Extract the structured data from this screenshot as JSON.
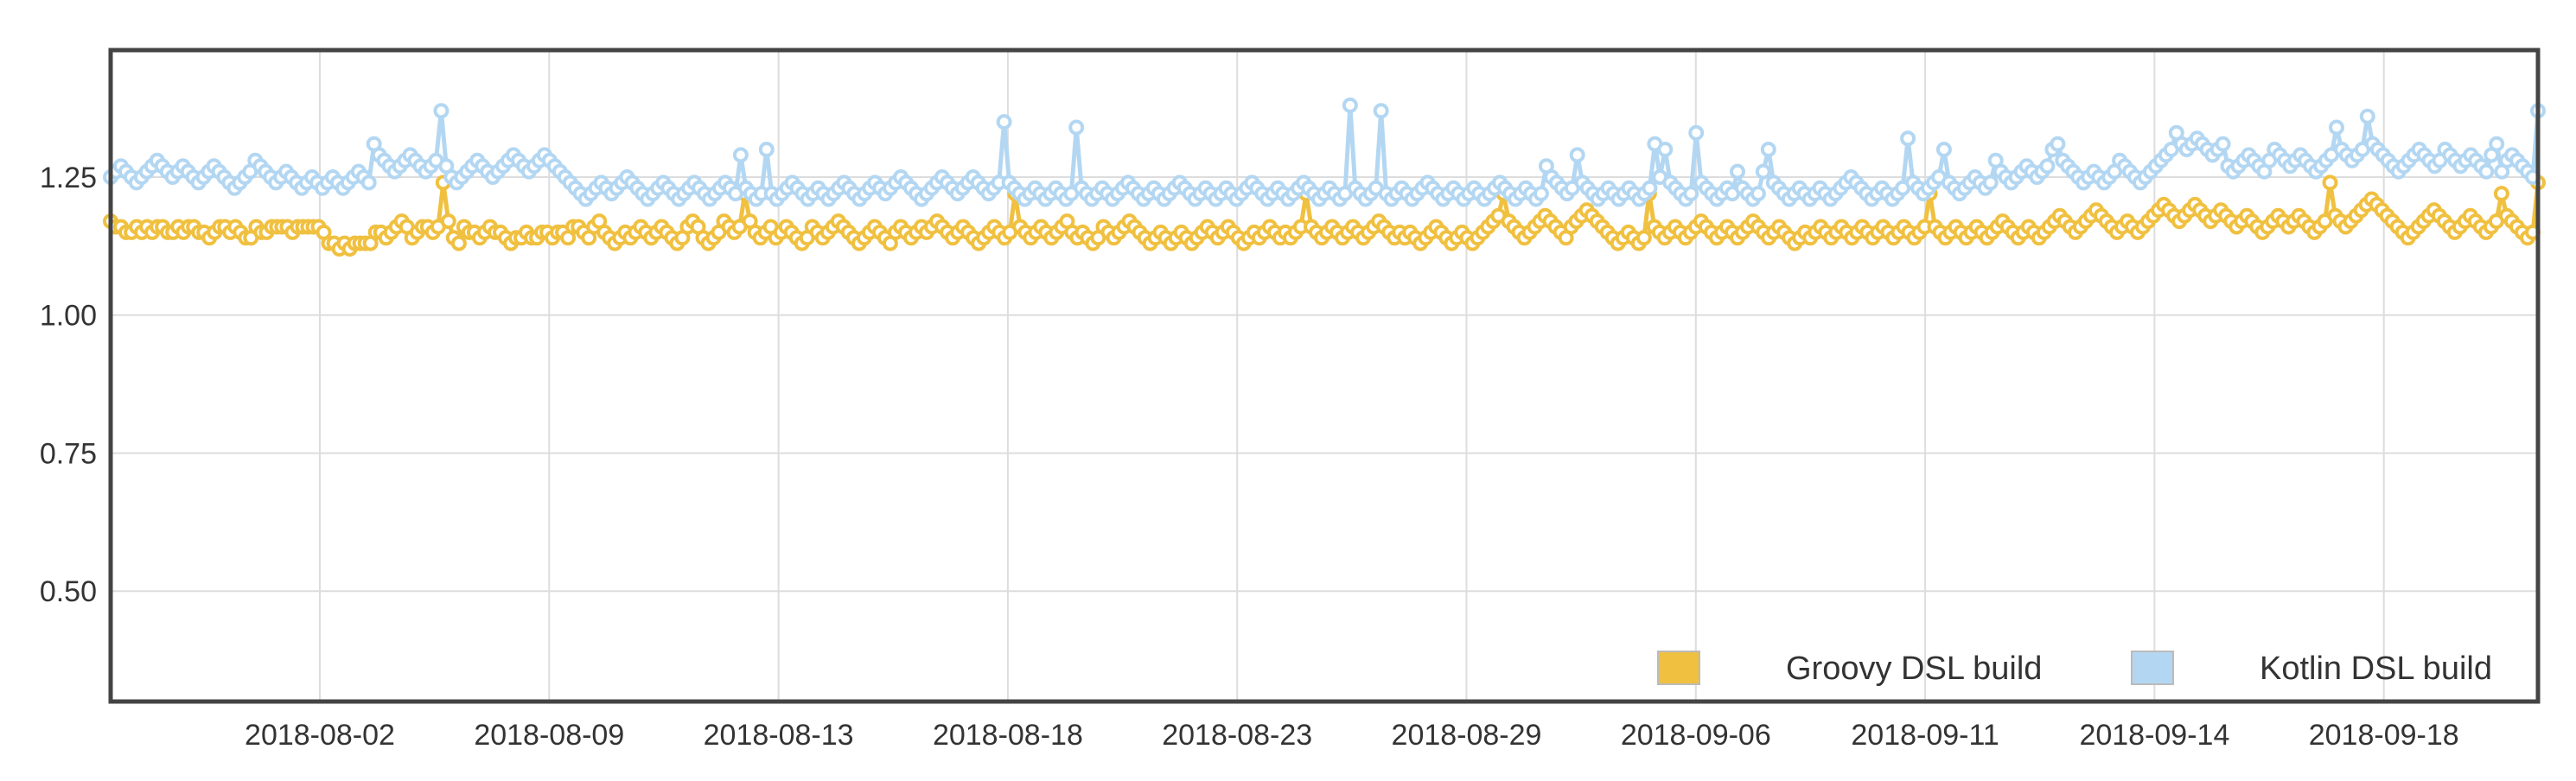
{
  "chart_data": {
    "type": "line",
    "title": "",
    "xlabel": "",
    "ylabel": "",
    "ylim": [
      0.3,
      1.48
    ],
    "y_ticks": [
      "0.50",
      "0.75",
      "1.00",
      "1.25"
    ],
    "x_ticks": [
      "2018-08-02",
      "2018-08-09",
      "2018-08-13",
      "2018-08-18",
      "2018-08-23",
      "2018-08-29",
      "2018-09-06",
      "2018-09-11",
      "2018-09-14",
      "2018-09-18"
    ],
    "grid": true,
    "legend_position": "bottom-right",
    "series": [
      {
        "name": "Groovy DSL build",
        "color": "#f0c040",
        "values": [
          1.17,
          1.16,
          1.16,
          1.15,
          1.15,
          1.16,
          1.15,
          1.16,
          1.15,
          1.16,
          1.16,
          1.15,
          1.15,
          1.16,
          1.15,
          1.16,
          1.16,
          1.15,
          1.15,
          1.14,
          1.15,
          1.16,
          1.16,
          1.15,
          1.16,
          1.15,
          1.14,
          1.14,
          1.16,
          1.15,
          1.15,
          1.16,
          1.16,
          1.16,
          1.16,
          1.15,
          1.16,
          1.16,
          1.16,
          1.16,
          1.16,
          1.15,
          1.13,
          1.13,
          1.12,
          1.13,
          1.12,
          1.13,
          1.13,
          1.13,
          1.13,
          1.15,
          1.15,
          1.14,
          1.15,
          1.16,
          1.17,
          1.16,
          1.14,
          1.15,
          1.16,
          1.16,
          1.15,
          1.16,
          1.24,
          1.17,
          1.14,
          1.13,
          1.16,
          1.15,
          1.15,
          1.14,
          1.15,
          1.16,
          1.15,
          1.15,
          1.14,
          1.13,
          1.14,
          1.14,
          1.15,
          1.14,
          1.14,
          1.15,
          1.15,
          1.14,
          1.15,
          1.15,
          1.14,
          1.16,
          1.16,
          1.15,
          1.14,
          1.16,
          1.17,
          1.15,
          1.14,
          1.13,
          1.14,
          1.15,
          1.14,
          1.15,
          1.16,
          1.15,
          1.14,
          1.15,
          1.16,
          1.15,
          1.14,
          1.13,
          1.14,
          1.16,
          1.17,
          1.16,
          1.14,
          1.13,
          1.14,
          1.15,
          1.17,
          1.16,
          1.15,
          1.16,
          1.22,
          1.17,
          1.15,
          1.14,
          1.15,
          1.16,
          1.14,
          1.15,
          1.16,
          1.15,
          1.14,
          1.13,
          1.14,
          1.16,
          1.15,
          1.14,
          1.15,
          1.16,
          1.17,
          1.16,
          1.15,
          1.14,
          1.13,
          1.14,
          1.15,
          1.16,
          1.15,
          1.14,
          1.13,
          1.15,
          1.16,
          1.15,
          1.14,
          1.15,
          1.16,
          1.15,
          1.16,
          1.17,
          1.16,
          1.15,
          1.14,
          1.15,
          1.16,
          1.15,
          1.14,
          1.13,
          1.14,
          1.15,
          1.16,
          1.15,
          1.14,
          1.15,
          1.22,
          1.16,
          1.15,
          1.14,
          1.15,
          1.16,
          1.15,
          1.14,
          1.15,
          1.16,
          1.17,
          1.15,
          1.14,
          1.15,
          1.14,
          1.13,
          1.14,
          1.16,
          1.15,
          1.14,
          1.15,
          1.16,
          1.17,
          1.16,
          1.15,
          1.14,
          1.13,
          1.14,
          1.15,
          1.14,
          1.13,
          1.14,
          1.15,
          1.14,
          1.13,
          1.14,
          1.15,
          1.16,
          1.15,
          1.14,
          1.15,
          1.16,
          1.15,
          1.14,
          1.13,
          1.14,
          1.15,
          1.14,
          1.15,
          1.16,
          1.15,
          1.14,
          1.15,
          1.14,
          1.15,
          1.16,
          1.22,
          1.16,
          1.15,
          1.14,
          1.15,
          1.16,
          1.15,
          1.14,
          1.15,
          1.16,
          1.15,
          1.14,
          1.15,
          1.16,
          1.17,
          1.16,
          1.15,
          1.14,
          1.15,
          1.14,
          1.15,
          1.14,
          1.13,
          1.14,
          1.15,
          1.16,
          1.15,
          1.14,
          1.13,
          1.14,
          1.15,
          1.14,
          1.13,
          1.14,
          1.15,
          1.16,
          1.17,
          1.18,
          1.22,
          1.17,
          1.16,
          1.15,
          1.14,
          1.15,
          1.16,
          1.17,
          1.18,
          1.17,
          1.16,
          1.15,
          1.14,
          1.16,
          1.17,
          1.18,
          1.19,
          1.18,
          1.17,
          1.16,
          1.15,
          1.14,
          1.13,
          1.14,
          1.15,
          1.14,
          1.13,
          1.14,
          1.22,
          1.16,
          1.15,
          1.14,
          1.15,
          1.16,
          1.15,
          1.14,
          1.15,
          1.16,
          1.17,
          1.16,
          1.15,
          1.14,
          1.15,
          1.16,
          1.15,
          1.14,
          1.15,
          1.16,
          1.17,
          1.16,
          1.15,
          1.14,
          1.15,
          1.16,
          1.15,
          1.14,
          1.13,
          1.14,
          1.15,
          1.14,
          1.15,
          1.16,
          1.15,
          1.14,
          1.15,
          1.16,
          1.15,
          1.14,
          1.15,
          1.16,
          1.15,
          1.14,
          1.15,
          1.16,
          1.15,
          1.14,
          1.15,
          1.16,
          1.15,
          1.14,
          1.15,
          1.16,
          1.22,
          1.16,
          1.15,
          1.14,
          1.15,
          1.16,
          1.15,
          1.14,
          1.15,
          1.16,
          1.15,
          1.14,
          1.15,
          1.16,
          1.17,
          1.16,
          1.15,
          1.14,
          1.15,
          1.16,
          1.15,
          1.14,
          1.15,
          1.16,
          1.17,
          1.18,
          1.17,
          1.16,
          1.15,
          1.16,
          1.17,
          1.18,
          1.19,
          1.18,
          1.17,
          1.16,
          1.15,
          1.16,
          1.17,
          1.16,
          1.15,
          1.16,
          1.17,
          1.18,
          1.19,
          1.2,
          1.19,
          1.18,
          1.17,
          1.18,
          1.19,
          1.2,
          1.19,
          1.18,
          1.17,
          1.18,
          1.19,
          1.18,
          1.17,
          1.16,
          1.17,
          1.18,
          1.17,
          1.16,
          1.15,
          1.16,
          1.17,
          1.18,
          1.17,
          1.16,
          1.17,
          1.18,
          1.17,
          1.16,
          1.15,
          1.16,
          1.17,
          1.24,
          1.18,
          1.17,
          1.16,
          1.17,
          1.18,
          1.19,
          1.2,
          1.21,
          1.2,
          1.19,
          1.18,
          1.17,
          1.16,
          1.15,
          1.14,
          1.15,
          1.16,
          1.17,
          1.18,
          1.19,
          1.18,
          1.17,
          1.16,
          1.15,
          1.16,
          1.17,
          1.18,
          1.17,
          1.16,
          1.15,
          1.16,
          1.17,
          1.22,
          1.18,
          1.17,
          1.16,
          1.15,
          1.14,
          1.15,
          1.24
        ]
      },
      {
        "name": "Kotlin DSL build",
        "color": "#b3d7f2",
        "values": [
          1.25,
          1.26,
          1.27,
          1.26,
          1.25,
          1.24,
          1.25,
          1.26,
          1.27,
          1.28,
          1.27,
          1.26,
          1.25,
          1.26,
          1.27,
          1.26,
          1.25,
          1.24,
          1.25,
          1.26,
          1.27,
          1.26,
          1.25,
          1.24,
          1.23,
          1.24,
          1.25,
          1.26,
          1.28,
          1.27,
          1.26,
          1.25,
          1.24,
          1.25,
          1.26,
          1.25,
          1.24,
          1.23,
          1.24,
          1.25,
          1.24,
          1.23,
          1.24,
          1.25,
          1.24,
          1.23,
          1.24,
          1.25,
          1.26,
          1.25,
          1.24,
          1.31,
          1.29,
          1.28,
          1.27,
          1.26,
          1.27,
          1.28,
          1.29,
          1.28,
          1.27,
          1.26,
          1.27,
          1.28,
          1.37,
          1.27,
          1.25,
          1.24,
          1.25,
          1.26,
          1.27,
          1.28,
          1.27,
          1.26,
          1.25,
          1.26,
          1.27,
          1.28,
          1.29,
          1.28,
          1.27,
          1.26,
          1.27,
          1.28,
          1.29,
          1.28,
          1.27,
          1.26,
          1.25,
          1.24,
          1.23,
          1.22,
          1.21,
          1.22,
          1.23,
          1.24,
          1.23,
          1.22,
          1.23,
          1.24,
          1.25,
          1.24,
          1.23,
          1.22,
          1.21,
          1.22,
          1.23,
          1.24,
          1.23,
          1.22,
          1.21,
          1.22,
          1.23,
          1.24,
          1.23,
          1.22,
          1.21,
          1.22,
          1.23,
          1.24,
          1.23,
          1.22,
          1.29,
          1.23,
          1.22,
          1.21,
          1.22,
          1.3,
          1.22,
          1.21,
          1.22,
          1.23,
          1.24,
          1.23,
          1.22,
          1.21,
          1.22,
          1.23,
          1.22,
          1.21,
          1.22,
          1.23,
          1.24,
          1.23,
          1.22,
          1.21,
          1.22,
          1.23,
          1.24,
          1.23,
          1.22,
          1.23,
          1.24,
          1.25,
          1.24,
          1.23,
          1.22,
          1.21,
          1.22,
          1.23,
          1.24,
          1.25,
          1.24,
          1.23,
          1.22,
          1.23,
          1.24,
          1.25,
          1.24,
          1.23,
          1.22,
          1.23,
          1.24,
          1.35,
          1.24,
          1.23,
          1.22,
          1.21,
          1.22,
          1.23,
          1.22,
          1.21,
          1.22,
          1.23,
          1.22,
          1.21,
          1.22,
          1.34,
          1.23,
          1.22,
          1.21,
          1.22,
          1.23,
          1.22,
          1.21,
          1.22,
          1.23,
          1.24,
          1.23,
          1.22,
          1.21,
          1.22,
          1.23,
          1.22,
          1.21,
          1.22,
          1.23,
          1.24,
          1.23,
          1.22,
          1.21,
          1.22,
          1.23,
          1.22,
          1.21,
          1.22,
          1.23,
          1.22,
          1.21,
          1.22,
          1.23,
          1.24,
          1.23,
          1.22,
          1.21,
          1.22,
          1.23,
          1.22,
          1.21,
          1.22,
          1.23,
          1.24,
          1.23,
          1.22,
          1.21,
          1.22,
          1.23,
          1.22,
          1.21,
          1.22,
          1.38,
          1.23,
          1.22,
          1.21,
          1.22,
          1.23,
          1.37,
          1.22,
          1.21,
          1.22,
          1.23,
          1.22,
          1.21,
          1.22,
          1.23,
          1.24,
          1.23,
          1.22,
          1.21,
          1.22,
          1.23,
          1.22,
          1.21,
          1.22,
          1.23,
          1.22,
          1.21,
          1.22,
          1.23,
          1.24,
          1.23,
          1.22,
          1.21,
          1.22,
          1.23,
          1.22,
          1.21,
          1.22,
          1.27,
          1.25,
          1.24,
          1.23,
          1.22,
          1.23,
          1.29,
          1.24,
          1.23,
          1.22,
          1.21,
          1.22,
          1.23,
          1.22,
          1.21,
          1.22,
          1.23,
          1.22,
          1.21,
          1.22,
          1.23,
          1.31,
          1.25,
          1.3,
          1.24,
          1.23,
          1.22,
          1.21,
          1.22,
          1.33,
          1.24,
          1.23,
          1.22,
          1.21,
          1.22,
          1.23,
          1.22,
          1.26,
          1.23,
          1.22,
          1.21,
          1.22,
          1.26,
          1.3,
          1.24,
          1.23,
          1.22,
          1.21,
          1.22,
          1.23,
          1.22,
          1.21,
          1.22,
          1.23,
          1.22,
          1.21,
          1.22,
          1.23,
          1.24,
          1.25,
          1.24,
          1.23,
          1.22,
          1.21,
          1.22,
          1.23,
          1.22,
          1.21,
          1.22,
          1.23,
          1.32,
          1.24,
          1.23,
          1.22,
          1.23,
          1.24,
          1.25,
          1.3,
          1.24,
          1.23,
          1.22,
          1.23,
          1.24,
          1.25,
          1.24,
          1.23,
          1.24,
          1.28,
          1.26,
          1.25,
          1.24,
          1.25,
          1.26,
          1.27,
          1.26,
          1.25,
          1.26,
          1.27,
          1.3,
          1.31,
          1.28,
          1.27,
          1.26,
          1.25,
          1.24,
          1.25,
          1.26,
          1.25,
          1.24,
          1.25,
          1.26,
          1.28,
          1.27,
          1.26,
          1.25,
          1.24,
          1.25,
          1.26,
          1.27,
          1.28,
          1.29,
          1.3,
          1.33,
          1.31,
          1.3,
          1.31,
          1.32,
          1.31,
          1.3,
          1.29,
          1.3,
          1.31,
          1.27,
          1.26,
          1.27,
          1.28,
          1.29,
          1.28,
          1.27,
          1.26,
          1.28,
          1.3,
          1.29,
          1.28,
          1.27,
          1.28,
          1.29,
          1.28,
          1.27,
          1.26,
          1.27,
          1.28,
          1.29,
          1.34,
          1.3,
          1.29,
          1.28,
          1.29,
          1.3,
          1.36,
          1.31,
          1.3,
          1.29,
          1.28,
          1.27,
          1.26,
          1.27,
          1.28,
          1.29,
          1.3,
          1.29,
          1.28,
          1.27,
          1.28,
          1.3,
          1.29,
          1.28,
          1.27,
          1.28,
          1.29,
          1.28,
          1.27,
          1.26,
          1.29,
          1.31,
          1.26,
          1.28,
          1.29,
          1.28,
          1.27,
          1.26,
          1.25,
          1.37
        ]
      }
    ]
  }
}
